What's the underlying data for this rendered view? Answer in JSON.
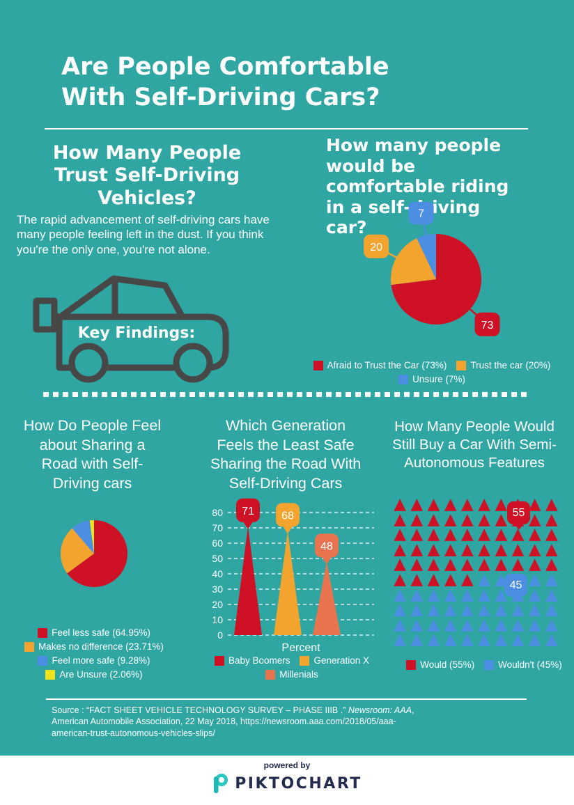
{
  "colors": {
    "background": "#2FA6A2",
    "red": "#CF1126",
    "orange": "#F2A42E",
    "blue": "#4C8FE2",
    "yellow": "#F0E41A",
    "salmon": "#E8744F",
    "icon_gray": "#474747",
    "navy": "#232C4E",
    "white": "#FFFFFF"
  },
  "header": {
    "title_lines": [
      "Are People Comfortable",
      "With Self-Driving Cars?"
    ]
  },
  "sections": {
    "trust": {
      "heading_lines": [
        "How Many People",
        "Trust Self-Driving",
        "Vehicles?"
      ],
      "body": "The rapid advancement of self-driving cars have many people feeling left in the dust. If you think you're the only one, you're not alone.",
      "key_findings": "Key Findings:"
    },
    "comfort": {
      "heading_lines": [
        "How many people",
        "would be",
        "comfortable riding",
        "in a self-driving",
        "car?"
      ]
    },
    "feel": {
      "heading_lines": [
        "How Do People Feel",
        "about Sharing a",
        "Road with Self-",
        "Driving cars"
      ]
    },
    "generation": {
      "heading_lines": [
        "Which Generation",
        "Feels the Least Safe",
        "Sharing the Road With",
        "Self-Driving Cars"
      ]
    },
    "buy": {
      "heading_lines": [
        "How Many People Would",
        "Still Buy a Car With Semi-",
        "Autonomous Features"
      ]
    }
  },
  "chart_data": [
    {
      "type": "pie",
      "title": "How many people would be comfortable riding in a self-driving car?",
      "labels": [
        "Afraid to Trust the Car",
        "Trust the car",
        "Unsure"
      ],
      "values": [
        73,
        20,
        7
      ],
      "slice_labels": [
        "73",
        "20",
        "7"
      ],
      "colors": [
        "#CF1126",
        "#F2A42E",
        "#4C8FE2"
      ],
      "legend": [
        "Afraid to Trust the Car (73%)",
        "Trust the car (20%)",
        "Unsure (7%)"
      ],
      "start_angle": "top",
      "direction": "clockwise",
      "legend_position": "bottom"
    },
    {
      "type": "pie",
      "title": "How Do People Feel about Sharing a Road with Self-Driving cars",
      "labels": [
        "Feel less safe",
        "Makes no difference",
        "Feel more safe",
        "Are Unsure"
      ],
      "values": [
        64.95,
        23.71,
        9.28,
        2.06
      ],
      "colors": [
        "#CF1126",
        "#F2A42E",
        "#4C8FE2",
        "#F0E41A"
      ],
      "legend": [
        "Feel less safe (64.95%)",
        "Makes no difference (23.71%)",
        "Feel more safe (9.28%)",
        "Are Unsure (2.06%)"
      ],
      "start_angle": "top",
      "direction": "clockwise",
      "legend_position": "bottom"
    },
    {
      "type": "bar",
      "subtype": "cone",
      "title": "Which Generation Feels the Least Safe Sharing the Road With Self-Driving Cars",
      "categories": [
        "Baby Boomers",
        "Generation X",
        "Millenials"
      ],
      "values": [
        71,
        68,
        48
      ],
      "value_labels": [
        "71",
        "68",
        "48"
      ],
      "colors": [
        "#CF1126",
        "#F2A42E",
        "#E8744F"
      ],
      "xlabel": "Percent",
      "ylim": [
        0,
        80
      ],
      "ytick_step": 10,
      "yticks": [
        "0",
        "10",
        "20",
        "30",
        "40",
        "50",
        "60",
        "70",
        "80"
      ],
      "grid": "dashed",
      "legend": [
        "Baby Boomers",
        "Generation X",
        "Millenials"
      ],
      "legend_position": "bottom"
    },
    {
      "type": "pictograph",
      "title": "How Many People Would Still Buy a Car With Semi-Autonomous Features",
      "icon": "triangle",
      "total": 100,
      "columns": 10,
      "series": [
        {
          "name": "Would",
          "value": 55,
          "color": "#CF1126"
        },
        {
          "name": "Wouldn't",
          "value": 45,
          "color": "#4C8FE2"
        }
      ],
      "value_labels": [
        "55",
        "45"
      ],
      "legend": [
        "Would (55%)",
        "Wouldn't (45%)"
      ],
      "legend_position": "bottom"
    }
  ],
  "source": {
    "prefix": "Source : “FACT SHEET VEHICLE TECHNOLOGY SURVEY – PHASE IIIB .” ",
    "italic": "Newsroom: AAA",
    "suffix": ", American Automobile Association, 22 May 2018, https://newsroom.aaa.com/2018/05/aaa-american-trust-autonomous-vehicles-slips/"
  },
  "footer": {
    "powered_by": "powered by",
    "brand": "PIKTOCHART"
  }
}
